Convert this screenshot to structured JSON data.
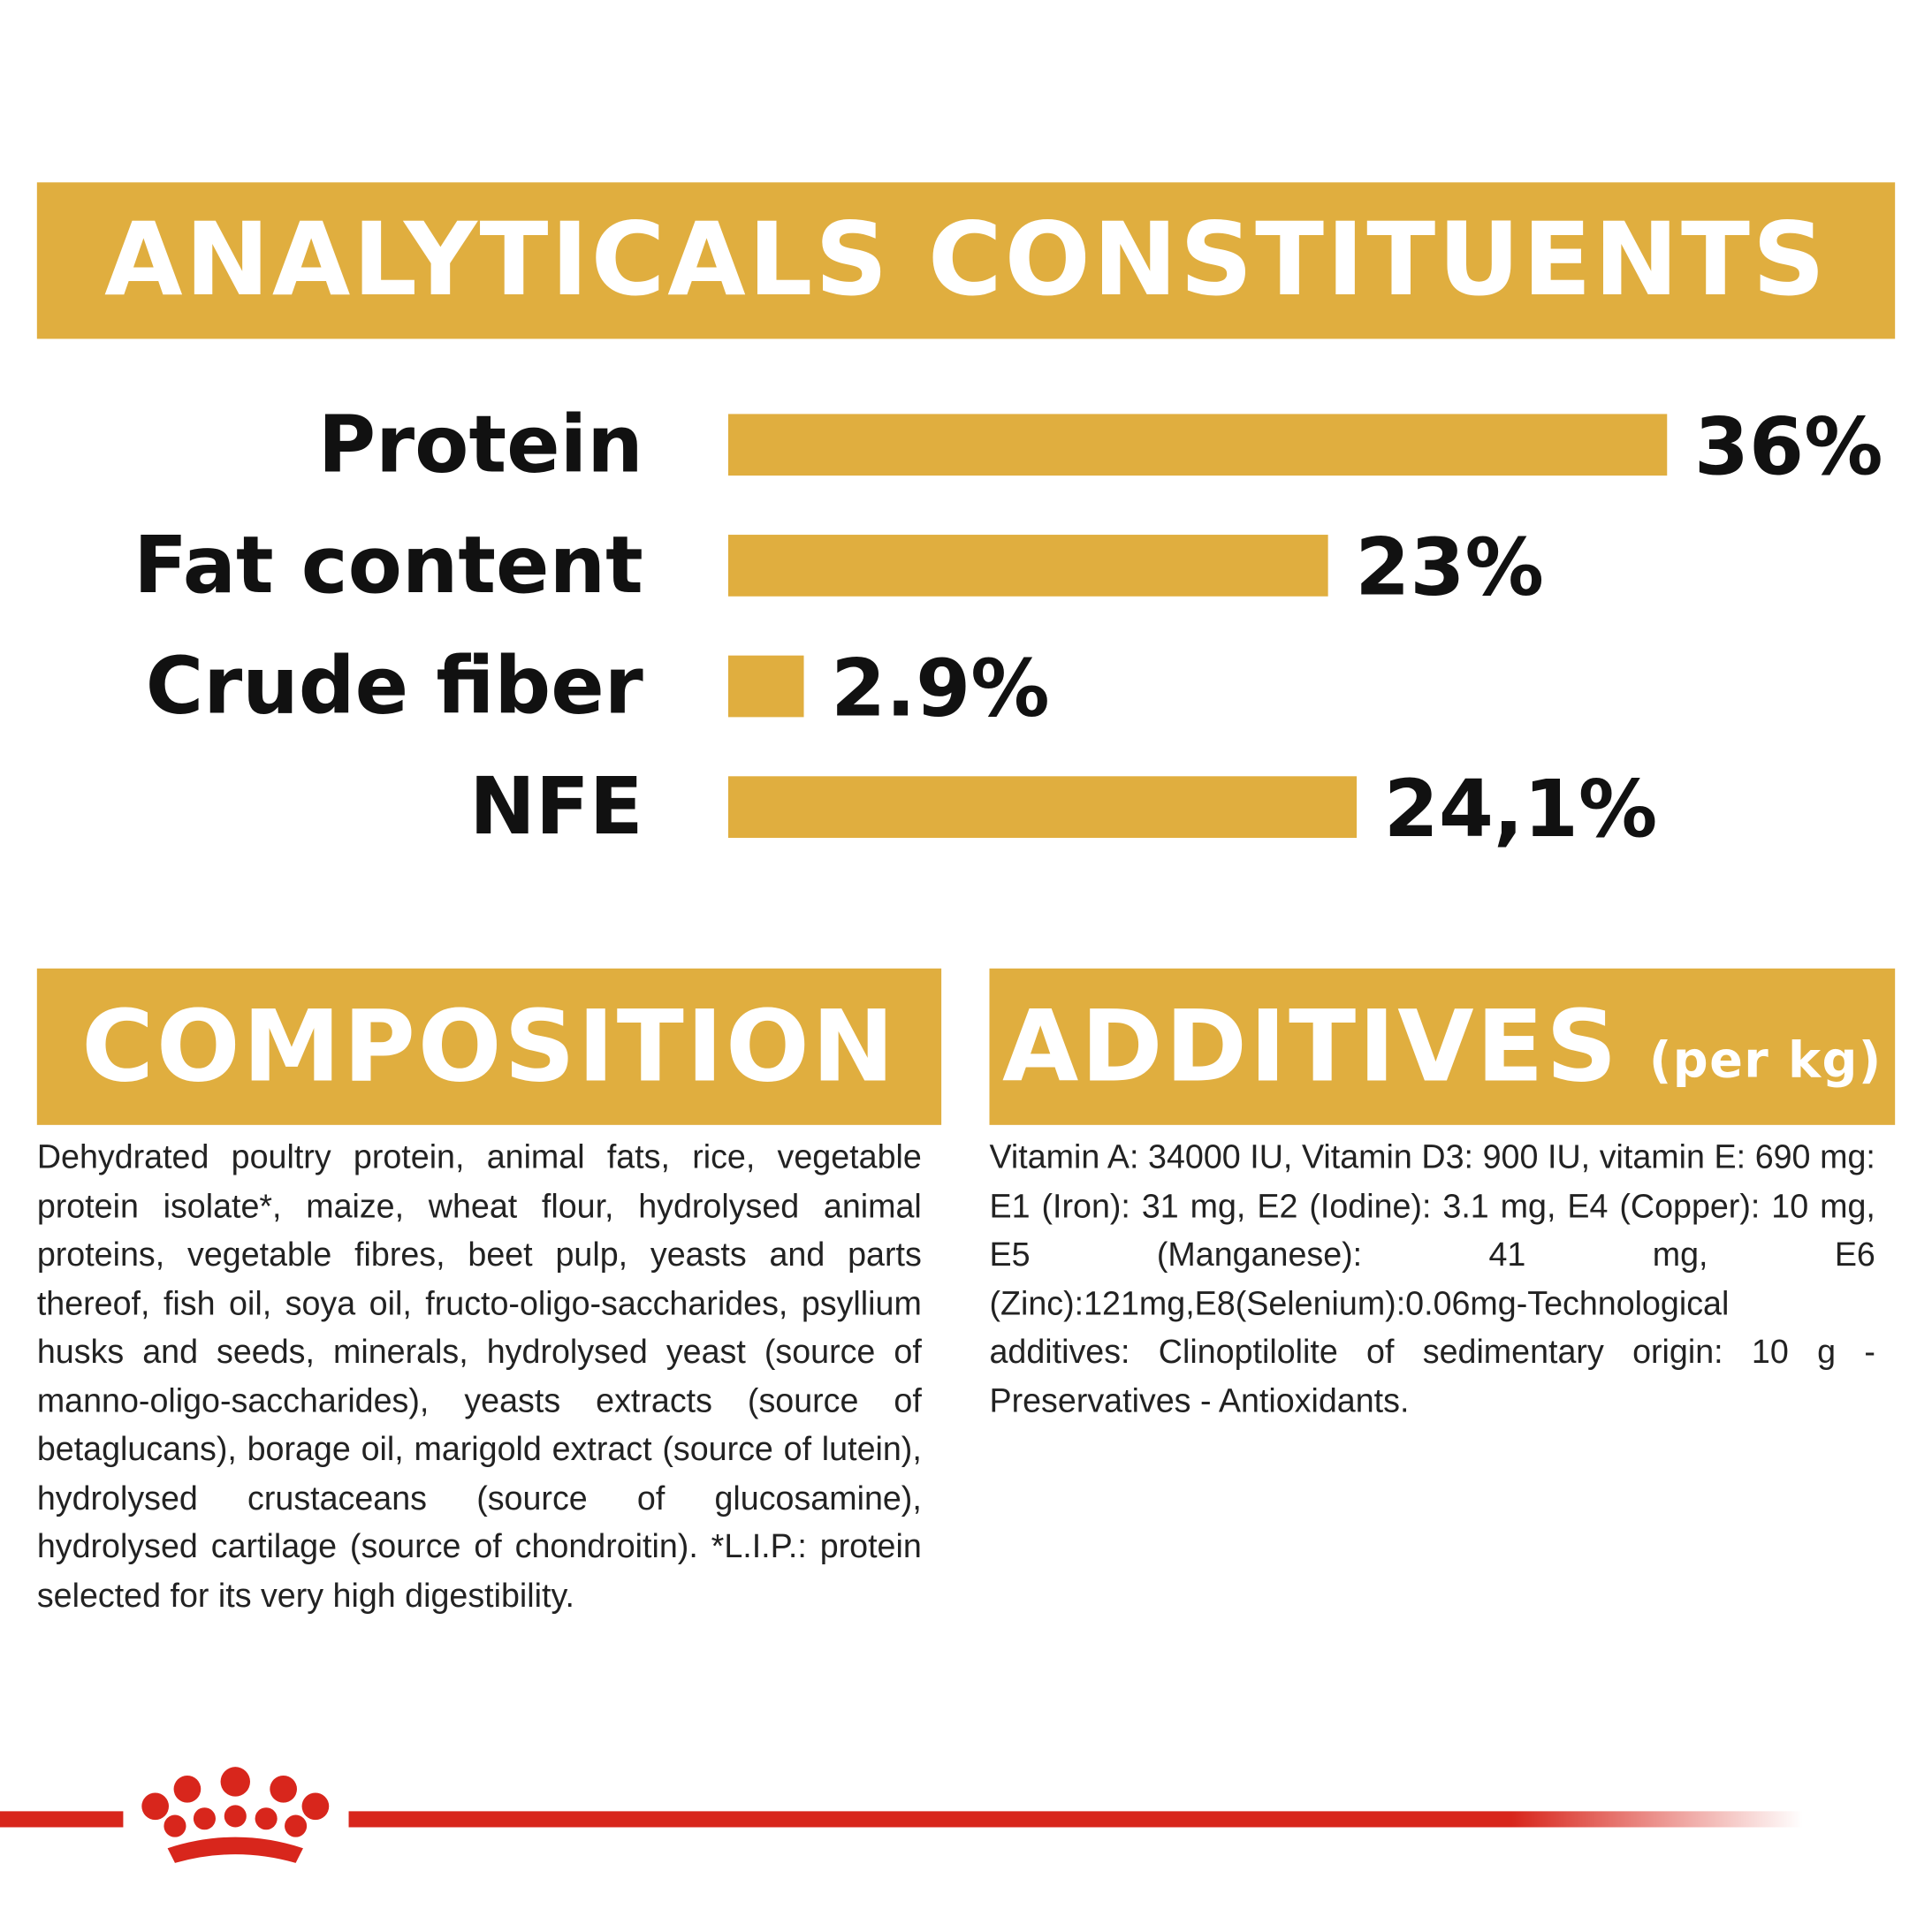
{
  "chart_data": {
    "type": "bar",
    "title": "ANALYTICALS CONSTITUENTS",
    "categories": [
      "Protein",
      "Fat content",
      "Crude fiber",
      "NFE"
    ],
    "values": [
      36,
      23,
      2.9,
      24.1
    ],
    "value_labels": [
      "36%",
      "23%",
      "2.9%",
      "24,1%"
    ],
    "color": "#e0ae3f"
  },
  "composition": {
    "title": "COMPOSITION",
    "text": "Dehydrated poultry protein, animal fats, rice, vegetable protein isolate*, maize, wheat flour, hydrolysed animal proteins, vegetable fibres, beet pulp, yeasts and parts thereof, fish oil, soya oil, fructo-oligo-saccharides, psyllium husks and seeds, minerals, hydrolysed yeast (source of manno-oligo-saccharides), yeasts extracts (source of betaglucans), borage oil, marigold extract (source of lutein), hydrolysed crustaceans (source of glucosamine), hydrolysed cartilage (source of chondroitin). *L.I.P.: protein selected for its very high digestibility."
  },
  "additives": {
    "title": "ADDITIVES",
    "subtitle": "(per kg)",
    "text": "Vitamin A: 34000 IU, Vitamin D3: 900 IU, vitamin E: 690 mg: E1 (Iron): 31 mg, E2 (Iodine): 3.1 mg, E4 (Copper): 10 mg, E5 (Manganese): 41 mg, E6 (Zinc):121mg,E8(Selenium):0.06mg-Technological additives: Clinoptilolite of sedimentary origin: 10 g - Preservatives - Antioxidants."
  }
}
